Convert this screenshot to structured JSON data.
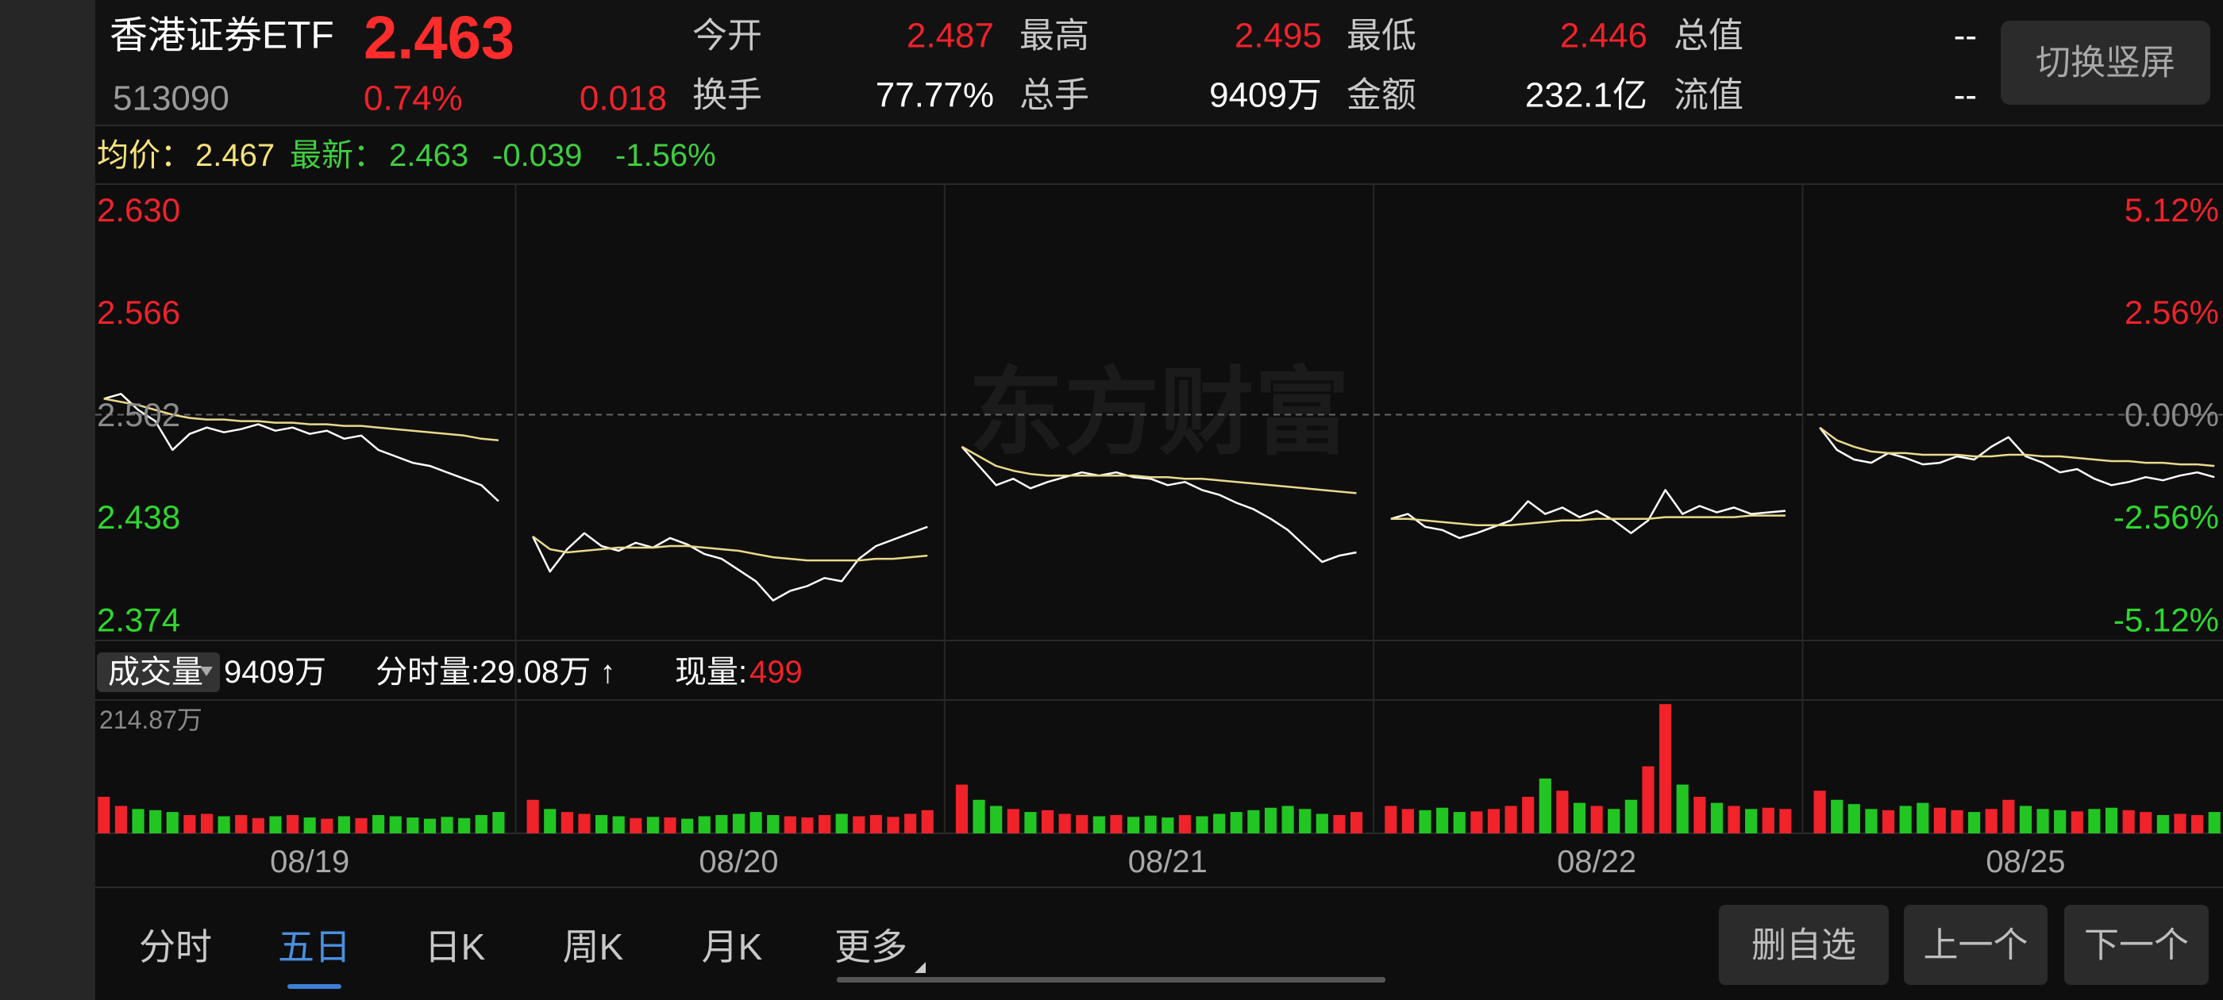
{
  "header": {
    "name": "香港证券ETF",
    "price": "2.463",
    "code": "513090",
    "change_pct": "0.74%",
    "change": "0.018",
    "stats": [
      [
        {
          "label": "今开",
          "value": "2.487",
          "color": "#f0222a"
        },
        {
          "label": "最高",
          "value": "2.495",
          "color": "#f0222a"
        },
        {
          "label": "最低",
          "value": "2.446",
          "color": "#f0222a"
        },
        {
          "label": "总值",
          "value": "--",
          "color": "#ffffff"
        }
      ],
      [
        {
          "label": "换手",
          "value": "77.77%",
          "color": "#ffffff"
        },
        {
          "label": "总手",
          "value": "9409万",
          "color": "#ffffff"
        },
        {
          "label": "金额",
          "value": "232.1亿",
          "color": "#ffffff"
        },
        {
          "label": "流值",
          "value": "--",
          "color": "#ffffff"
        }
      ]
    ],
    "toggle_button": "切换竖屏"
  },
  "info_bar": {
    "avg_label": "均价：",
    "avg": "2.467",
    "latest_label": "最新：",
    "latest": "2.463",
    "change": "-0.039",
    "change_pct": "-1.56%"
  },
  "watermark": "东方财富",
  "volume_bar": {
    "label": "成交量",
    "total": "9409万",
    "minute_volume": "分时量:29.08万 ↑",
    "current_label": "现量:",
    "current": "499"
  },
  "chart_data": {
    "type": "line",
    "ylim": [
      2.361,
      2.646
    ],
    "yticks": [
      {
        "value": 2.63,
        "label": "2.630"
      },
      2.566,
      2.502,
      2.438,
      2.374
    ],
    "ytick_colors": [
      "#f0222a",
      "#f0222a",
      "#8a8a8a",
      "#2fd62f",
      "#2fd62f"
    ],
    "y2lim": [
      -5.64,
      5.76
    ],
    "y2ticks": [
      {
        "value": 5.12,
        "label": "5.12%"
      },
      {
        "value": 2.56,
        "label": "2.56%"
      },
      {
        "value": 0,
        "label": "0.00%"
      },
      {
        "value": -2.56,
        "label": "-2.56%"
      },
      {
        "value": -5.12,
        "label": "-5.12%"
      }
    ],
    "y2tick_colors": [
      "#f0222a",
      "#f0222a",
      "#8a8a8a",
      "#2fd62f",
      "#2fd62f"
    ],
    "up_color": "#f0222a",
    "down_color": "#22c622",
    "categories": [
      null,
      null,
      null,
      null,
      null,
      null,
      null,
      null,
      null,
      null,
      null,
      null,
      "08/19",
      null,
      null,
      null,
      null,
      null,
      null,
      null,
      null,
      null,
      null,
      null,
      null,
      null,
      null,
      null,
      null,
      null,
      null,
      null,
      null,
      null,
      null,
      null,
      null,
      "08/20",
      null,
      null,
      null,
      null,
      null,
      null,
      null,
      null,
      null,
      null,
      null,
      null,
      null,
      null,
      null,
      null,
      null,
      null,
      null,
      null,
      null,
      null,
      null,
      null,
      "08/21",
      null,
      null,
      null,
      null,
      null,
      null,
      null,
      null,
      null,
      null,
      null,
      null,
      null,
      null,
      null,
      null,
      null,
      null,
      null,
      null,
      null,
      null,
      null,
      null,
      "08/22",
      null,
      null,
      null,
      null,
      null,
      null,
      null,
      null,
      null,
      null,
      null,
      null,
      null,
      null,
      null,
      null,
      null,
      null,
      null,
      null,
      null,
      null,
      null,
      null,
      "08/25",
      null,
      null,
      null,
      null,
      null,
      null,
      null,
      null,
      null,
      null,
      null
    ],
    "series": [
      {
        "color": "#ffffff",
        "values": [
          2.512,
          2.515,
          2.505,
          2.498,
          2.48,
          2.49,
          2.494,
          2.491,
          2.493,
          2.496,
          2.492,
          2.494,
          2.49,
          2.492,
          2.487,
          2.489,
          2.48,
          2.476,
          2.472,
          2.47,
          2.466,
          2.462,
          2.458,
          2.448,
          null,
          2.426,
          2.404,
          2.418,
          2.428,
          2.42,
          2.417,
          2.422,
          2.419,
          2.425,
          2.421,
          2.415,
          2.412,
          2.405,
          2.398,
          2.386,
          2.392,
          2.395,
          2.4,
          2.398,
          2.412,
          2.42,
          2.424,
          2.428,
          2.432,
          null,
          2.482,
          2.47,
          2.458,
          2.462,
          2.456,
          2.46,
          2.463,
          2.466,
          2.464,
          2.466,
          2.463,
          2.462,
          2.458,
          2.46,
          2.455,
          2.452,
          2.447,
          2.443,
          2.437,
          2.43,
          2.42,
          2.41,
          2.414,
          2.416,
          null,
          2.437,
          2.44,
          2.432,
          2.43,
          2.425,
          2.428,
          2.432,
          2.436,
          2.448,
          2.44,
          2.444,
          2.438,
          2.442,
          2.436,
          2.428,
          2.436,
          2.455,
          2.44,
          2.445,
          2.441,
          2.444,
          2.44,
          2.441,
          2.442,
          null,
          2.494,
          2.48,
          2.474,
          2.472,
          2.478,
          2.475,
          2.471,
          2.472,
          2.476,
          2.474,
          2.482,
          2.488,
          2.476,
          2.472,
          2.466,
          2.468,
          2.462,
          2.458,
          2.46,
          2.463,
          2.461,
          2.464,
          2.466,
          2.463
        ]
      },
      {
        "color": "#e9d98a",
        "values": [
          2.512,
          2.51,
          2.508,
          2.505,
          2.502,
          2.5,
          2.499,
          2.499,
          2.498,
          2.498,
          2.497,
          2.497,
          2.496,
          2.496,
          2.495,
          2.495,
          2.494,
          2.493,
          2.492,
          2.491,
          2.49,
          2.489,
          2.487,
          2.486,
          null,
          2.426,
          2.418,
          2.416,
          2.417,
          2.418,
          2.419,
          2.419,
          2.419,
          2.42,
          2.42,
          2.419,
          2.418,
          2.417,
          2.415,
          2.413,
          2.412,
          2.411,
          2.411,
          2.411,
          2.411,
          2.412,
          2.412,
          2.413,
          2.414,
          null,
          2.482,
          2.476,
          2.47,
          2.467,
          2.465,
          2.464,
          2.464,
          2.464,
          2.464,
          2.464,
          2.464,
          2.463,
          2.463,
          2.462,
          2.462,
          2.461,
          2.46,
          2.459,
          2.458,
          2.457,
          2.456,
          2.455,
          2.454,
          2.453,
          null,
          2.437,
          2.437,
          2.436,
          2.435,
          2.434,
          2.433,
          2.433,
          2.433,
          2.434,
          2.435,
          2.436,
          2.436,
          2.437,
          2.437,
          2.437,
          2.437,
          2.438,
          2.438,
          2.438,
          2.438,
          2.438,
          2.439,
          2.439,
          2.439,
          null,
          2.494,
          2.486,
          2.482,
          2.479,
          2.478,
          2.478,
          2.477,
          2.477,
          2.477,
          2.476,
          2.476,
          2.477,
          2.477,
          2.476,
          2.476,
          2.475,
          2.474,
          2.473,
          2.473,
          2.472,
          2.472,
          2.471,
          2.471,
          2.47
        ]
      }
    ],
    "volume": {
      "ylim": [
        0,
        214.87
      ],
      "yticks": [
        {
          "value": 214.87,
          "label": "214.87万"
        }
      ],
      "values": [
        60,
        45,
        40,
        38,
        35,
        30,
        32,
        28,
        30,
        25,
        28,
        30,
        26,
        24,
        28,
        25,
        30,
        28,
        26,
        24,
        27,
        25,
        30,
        35,
        null,
        55,
        40,
        35,
        32,
        30,
        28,
        25,
        27,
        26,
        24,
        28,
        30,
        32,
        35,
        30,
        28,
        26,
        30,
        32,
        28,
        30,
        27,
        32,
        38,
        null,
        80,
        55,
        45,
        40,
        35,
        38,
        32,
        30,
        28,
        30,
        27,
        29,
        26,
        30,
        28,
        32,
        35,
        38,
        42,
        45,
        40,
        32,
        30,
        35,
        null,
        45,
        40,
        38,
        42,
        35,
        36,
        40,
        45,
        60,
        90,
        70,
        50,
        45,
        40,
        55,
        110,
        212,
        80,
        60,
        50,
        45,
        40,
        42,
        40,
        null,
        70,
        55,
        48,
        40,
        38,
        45,
        50,
        42,
        38,
        35,
        40,
        55,
        45,
        40,
        38,
        36,
        40,
        42,
        38,
        35,
        30,
        32,
        30,
        35
      ]
    }
  },
  "tabs": [
    "分时",
    "五日",
    "日K",
    "周K",
    "月K",
    "更多"
  ],
  "active_tab": 1,
  "buttons": [
    "删自选",
    "上一个",
    "下一个"
  ]
}
